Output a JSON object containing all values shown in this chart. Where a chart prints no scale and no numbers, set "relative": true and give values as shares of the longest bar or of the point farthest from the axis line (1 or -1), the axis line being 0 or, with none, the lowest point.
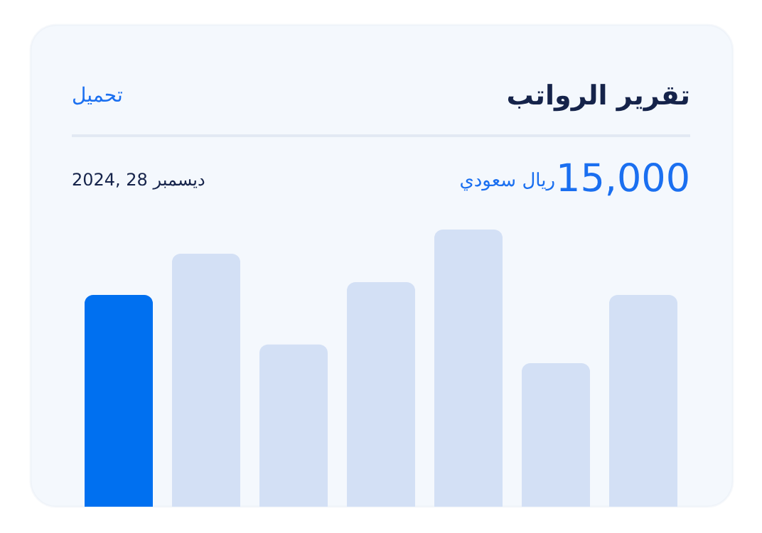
{
  "chart_data": {
    "type": "bar",
    "title": "تقرير الرواتب",
    "annotations": [
      "تحميل",
      "15,000",
      "ريال سعودي",
      "2024, 28 ديسمبر"
    ],
    "categories": [
      null,
      null,
      null,
      null,
      null,
      null,
      null
    ],
    "values": [
      0.764,
      0.913,
      0.585,
      0.81,
      1,
      0.518,
      0.764
    ],
    "colors": [
      "#0070f0",
      "#d3e0f5",
      "#d3e0f5",
      "#d3e0f5",
      "#d3e0f5",
      "#d3e0f5",
      "#d3e0f5"
    ],
    "relative": true
  }
}
